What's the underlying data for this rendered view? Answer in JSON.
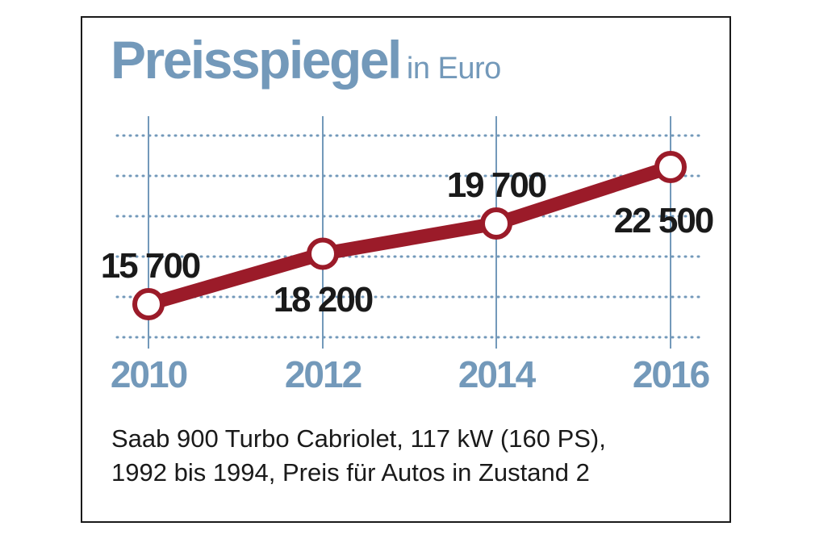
{
  "chart_data": {
    "type": "line",
    "title": "Preisspiegel",
    "subtitle": "in Euro",
    "x": [
      "2010",
      "2012",
      "2014",
      "2016"
    ],
    "values": [
      15700,
      18200,
      19700,
      22500
    ],
    "value_labels": [
      "15 700",
      "18 200",
      "19 700",
      "22 500"
    ],
    "grid": true,
    "colors": {
      "line": "#9b1b29",
      "accent": "#7399ba",
      "grid": "#7399ba",
      "text": "#1a1a1a"
    }
  },
  "caption": {
    "line1": "Saab 900 Turbo Cabriolet, 117 kW (160 PS),",
    "line2": "1992 bis 1994, Preis für Autos in Zustand 2"
  }
}
